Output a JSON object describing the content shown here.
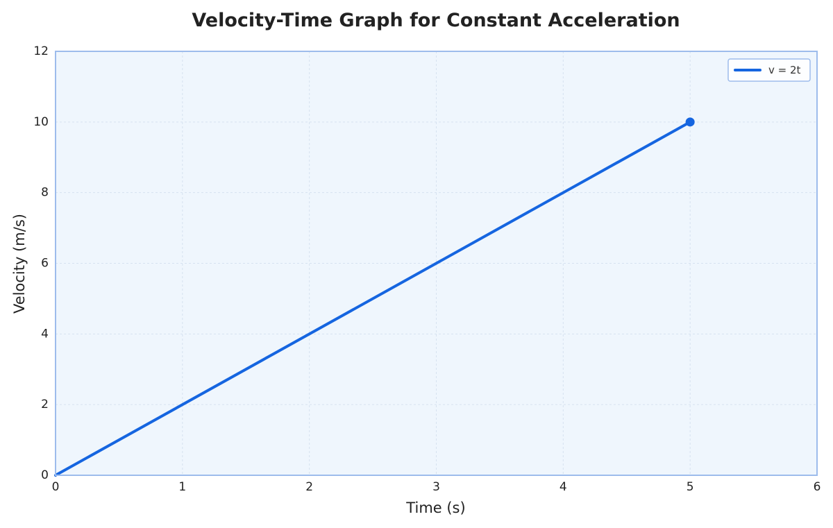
{
  "chart_data": {
    "type": "line",
    "title": "Velocity-Time Graph for Constant Acceleration",
    "xlabel": "Time (s)",
    "ylabel": "Velocity (m/s)",
    "xlim": [
      0,
      6
    ],
    "ylim": [
      0,
      12
    ],
    "xticks": [
      0,
      1,
      2,
      3,
      4,
      5,
      6
    ],
    "yticks": [
      0,
      2,
      4,
      6,
      8,
      10,
      12
    ],
    "grid": true,
    "legend_position": "top-right",
    "series": [
      {
        "name": "v = 2t",
        "x": [
          0,
          5
        ],
        "y": [
          0,
          10
        ],
        "endpoint_marker": {
          "x": 5,
          "y": 10
        }
      }
    ]
  },
  "colors": {
    "line": "#1565e0",
    "plot_background": "#eff6fd",
    "frame": "#9dbcec",
    "grid": "#d6e2f0"
  }
}
